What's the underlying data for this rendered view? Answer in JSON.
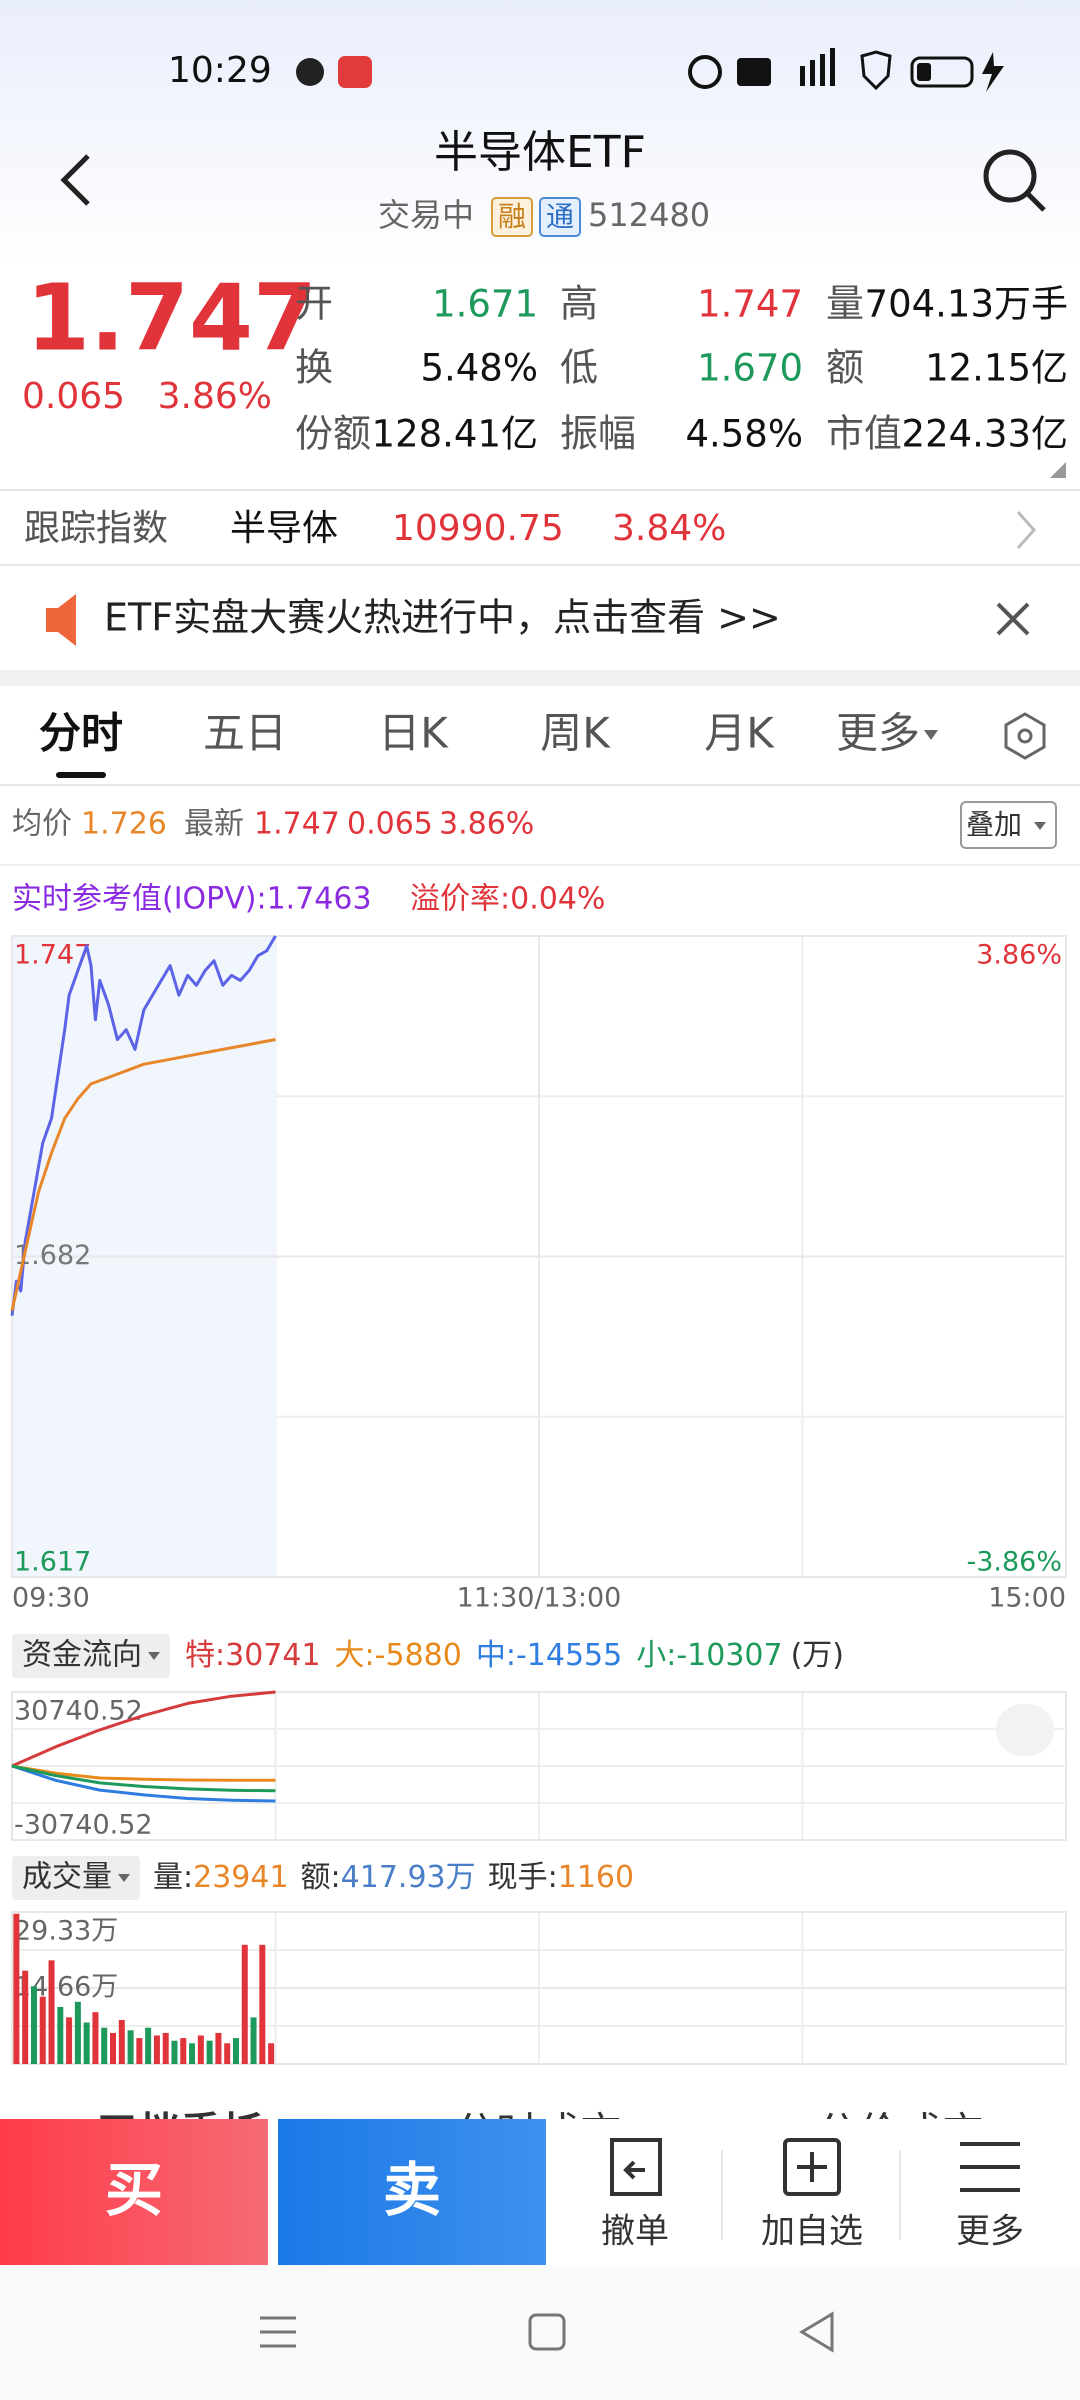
{
  "status_bar": {
    "time": "10:29"
  },
  "header": {
    "title": "半导体ETF",
    "status": "交易中",
    "badge_rong": "融",
    "badge_tong": "通",
    "code": "512480"
  },
  "quote": {
    "price": "1.747",
    "change": "0.065",
    "change_pct": "3.86%",
    "stats": [
      {
        "label": "开",
        "value": "1.671"
      },
      {
        "label": "高",
        "value": "1.747"
      },
      {
        "label": "量",
        "value": "704.13万手"
      },
      {
        "label": "换",
        "value": "5.48%"
      },
      {
        "label": "低",
        "value": "1.670"
      },
      {
        "label": "额",
        "value": "12.15亿"
      },
      {
        "label": "份额",
        "value": "128.41亿"
      },
      {
        "label": "振幅",
        "value": "4.58%"
      },
      {
        "label": "市值",
        "value": "224.33亿"
      }
    ]
  },
  "tracking": {
    "label": "跟踪指数",
    "index": "半导体",
    "value": "10990.75",
    "change_pct": "3.84%"
  },
  "banner": {
    "text": "ETF实盘大赛火热进行中，点击查看 >>"
  },
  "tabs": [
    "分时",
    "五日",
    "日K",
    "周K",
    "月K",
    "更多"
  ],
  "summary": {
    "avg_label": "均价",
    "avg": "1.726",
    "latest_label": "最新",
    "latest": "1.747",
    "change": "0.065",
    "change_pct": "3.86%",
    "overlay": "叠加"
  },
  "iopv": {
    "label": "实时参考值(IOPV):1.7463",
    "premium": "溢价率:0.04%"
  },
  "chart_data": [
    {
      "type": "line",
      "xlim": [
        0,
        240
      ],
      "xticks": [
        {
          "value": 0,
          "label": "09:30"
        },
        {
          "value": 120,
          "label": "11:30/13:00"
        },
        {
          "value": 240,
          "label": "15:00"
        }
      ],
      "ylim": [
        1.617,
        1.747
      ],
      "yticks": [
        1.617,
        1.682,
        1.747
      ],
      "y2lim": [
        -3.86,
        3.86
      ],
      "y2ticks": [
        {
          "value": -3.86,
          "label": "-3.86%"
        },
        {
          "value": 3.86,
          "label": "3.86%"
        }
      ],
      "grid": true,
      "series": [
        {
          "color": "#5b63e6",
          "x": [
            0,
            1,
            2,
            3,
            5,
            7,
            9,
            11,
            12,
            13,
            15,
            17,
            18,
            19,
            20,
            22,
            24,
            26,
            28,
            30,
            32,
            34,
            36,
            38,
            40,
            42,
            44,
            46,
            48,
            50,
            52,
            54,
            56,
            58,
            60
          ],
          "values": [
            1.67,
            1.677,
            1.675,
            1.685,
            1.695,
            1.705,
            1.71,
            1.722,
            1.728,
            1.735,
            1.74,
            1.745,
            1.741,
            1.73,
            1.738,
            1.733,
            1.726,
            1.728,
            1.724,
            1.732,
            1.735,
            1.738,
            1.741,
            1.735,
            1.739,
            1.737,
            1.74,
            1.742,
            1.737,
            1.739,
            1.738,
            1.74,
            1.743,
            1.744,
            1.747
          ]
        },
        {
          "color": "#e8862a",
          "x": [
            0,
            3,
            6,
            9,
            12,
            15,
            18,
            24,
            30,
            36,
            42,
            48,
            54,
            60
          ],
          "values": [
            1.671,
            1.683,
            1.695,
            1.703,
            1.71,
            1.714,
            1.717,
            1.719,
            1.721,
            1.722,
            1.723,
            1.724,
            1.725,
            1.726
          ]
        }
      ]
    },
    {
      "type": "line",
      "title": "资金流向",
      "unit": "(万)",
      "xlim": [
        0,
        240
      ],
      "ylim": [
        -30740.52,
        30740.52
      ],
      "yticks": [
        -30740.52,
        30740.52
      ],
      "series": [
        {
          "name": "特:",
          "color": "#d63b3b",
          "x": [
            0,
            10,
            20,
            30,
            40,
            50,
            60
          ],
          "values": [
            0,
            8000,
            15000,
            21000,
            26000,
            29000,
            30741
          ]
        },
        {
          "name": "大:",
          "color": "#e88a1a",
          "x": [
            0,
            10,
            20,
            30,
            40,
            50,
            60
          ],
          "values": [
            0,
            -3000,
            -5000,
            -5500,
            -5800,
            -5900,
            -5880
          ]
        },
        {
          "name": "中:",
          "color": "#2f7de0",
          "x": [
            0,
            10,
            20,
            30,
            40,
            50,
            60
          ],
          "values": [
            0,
            -6000,
            -10000,
            -12000,
            -13500,
            -14200,
            -14555
          ]
        },
        {
          "name": "小:",
          "color": "#1d9a5b",
          "x": [
            0,
            10,
            20,
            30,
            40,
            50,
            60
          ],
          "values": [
            0,
            -4000,
            -7000,
            -8500,
            -9500,
            -10100,
            -10307
          ]
        }
      ]
    },
    {
      "type": "bar",
      "title": "成交量",
      "stats": [
        {
          "label": "量:",
          "value": "23941"
        },
        {
          "label": "额:",
          "value": "417.93万"
        },
        {
          "label": "现手:",
          "value": "1160"
        }
      ],
      "xlim": [
        0,
        240
      ],
      "ylim": [
        0,
        293300
      ],
      "yticks": [
        {
          "value": 146650,
          "label": "14.66万"
        },
        {
          "value": 293300,
          "label": "29.33万"
        }
      ],
      "x": [
        1,
        3,
        5,
        7,
        9,
        11,
        13,
        15,
        17,
        19,
        21,
        23,
        25,
        27,
        29,
        31,
        33,
        35,
        37,
        39,
        41,
        43,
        45,
        47,
        49,
        51,
        53,
        55,
        57,
        59
      ],
      "values": [
        290000,
        180000,
        150000,
        130000,
        200000,
        110000,
        90000,
        120000,
        80000,
        100000,
        70000,
        60000,
        85000,
        65000,
        50000,
        70000,
        55000,
        60000,
        45000,
        50000,
        40000,
        55000,
        45000,
        60000,
        40000,
        50000,
        230000,
        90000,
        230000,
        40000
      ],
      "colors": [
        "#e0333a",
        "#e0333a",
        "#1d9a5b",
        "#e0333a",
        "#e0333a",
        "#1d9a5b",
        "#e0333a",
        "#1d9a5b",
        "#1d9a5b",
        "#e0333a",
        "#1d9a5b",
        "#e0333a",
        "#e0333a",
        "#1d9a5b",
        "#e0333a",
        "#1d9a5b",
        "#e0333a",
        "#e0333a",
        "#1d9a5b",
        "#e0333a",
        "#1d9a5b",
        "#e0333a",
        "#1d9a5b",
        "#e0333a",
        "#e0333a",
        "#1d9a5b",
        "#e0333a",
        "#1d9a5b",
        "#e0333a",
        "#e0333a"
      ]
    }
  ],
  "bottom_tabs": [
    "五档委托",
    "分时成交",
    "分价成交"
  ],
  "actions": {
    "buy": "买",
    "sell": "卖",
    "cancel": "撤单",
    "watch": "加自选",
    "more": "更多"
  }
}
